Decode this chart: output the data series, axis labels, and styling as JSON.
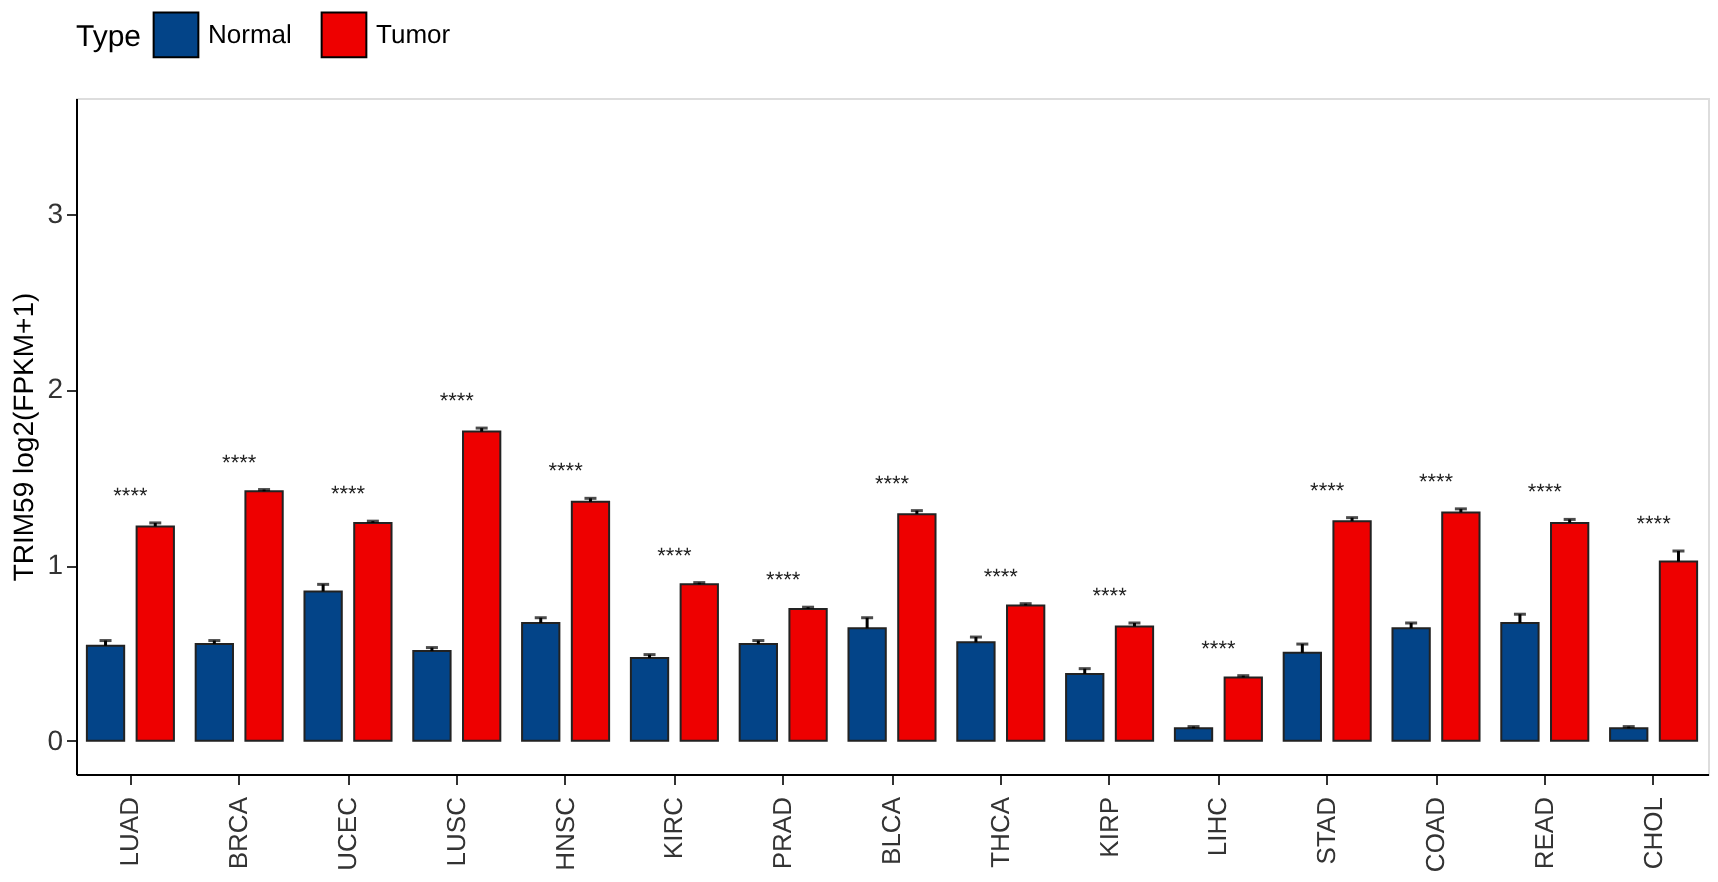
{
  "chart_data": {
    "type": "bar",
    "ylabel": "TRIM59 log2(FPKM+1)",
    "legend_title": "Type",
    "legend": "top",
    "grid": false,
    "categories": [
      "LUAD",
      "BRCA",
      "UCEC",
      "LUSC",
      "HNSC",
      "KIRC",
      "PRAD",
      "BLCA",
      "THCA",
      "KIRP",
      "LIHC",
      "STAD",
      "COAD",
      "READ",
      "CHOL"
    ],
    "series": [
      {
        "name": "Normal",
        "color": "#034488",
        "values": [
          0.54,
          0.55,
          0.85,
          0.51,
          0.67,
          0.47,
          0.55,
          0.64,
          0.56,
          0.38,
          0.07,
          0.5,
          0.64,
          0.67,
          0.07
        ],
        "errors": [
          [
            0.54,
            0.57
          ],
          [
            0.55,
            0.57
          ],
          [
            0.85,
            0.89
          ],
          [
            0.51,
            0.53
          ],
          [
            0.67,
            0.7
          ],
          [
            0.47,
            0.49
          ],
          [
            0.55,
            0.57
          ],
          [
            0.64,
            0.7
          ],
          [
            0.56,
            0.59
          ],
          [
            0.38,
            0.41
          ],
          [
            0.07,
            0.08
          ],
          [
            0.5,
            0.55
          ],
          [
            0.64,
            0.67
          ],
          [
            0.67,
            0.72
          ],
          [
            0.07,
            0.08
          ]
        ]
      },
      {
        "name": "Tumor",
        "color": "#ee0000",
        "values": [
          1.22,
          1.42,
          1.24,
          1.76,
          1.36,
          0.89,
          0.75,
          1.29,
          0.77,
          0.65,
          0.36,
          1.25,
          1.3,
          1.24,
          1.02
        ],
        "errors": [
          [
            1.22,
            1.24
          ],
          [
            1.42,
            1.43
          ],
          [
            1.24,
            1.25
          ],
          [
            1.76,
            1.78
          ],
          [
            1.36,
            1.38
          ],
          [
            0.89,
            0.9
          ],
          [
            0.75,
            0.76
          ],
          [
            1.29,
            1.31
          ],
          [
            0.77,
            0.78
          ],
          [
            0.65,
            0.67
          ],
          [
            0.36,
            0.37
          ],
          [
            1.25,
            1.27
          ],
          [
            1.3,
            1.32
          ],
          [
            1.24,
            1.26
          ],
          [
            1.02,
            1.08
          ]
        ]
      }
    ],
    "ylim": [
      -0.19,
      3.66
    ],
    "yticks": [
      0,
      1,
      2,
      3
    ],
    "annotations": [
      "****",
      "****",
      "****",
      "****",
      "****",
      "****",
      "****",
      "****",
      "****",
      "****",
      "****",
      "****",
      "****",
      "****",
      "****"
    ]
  }
}
